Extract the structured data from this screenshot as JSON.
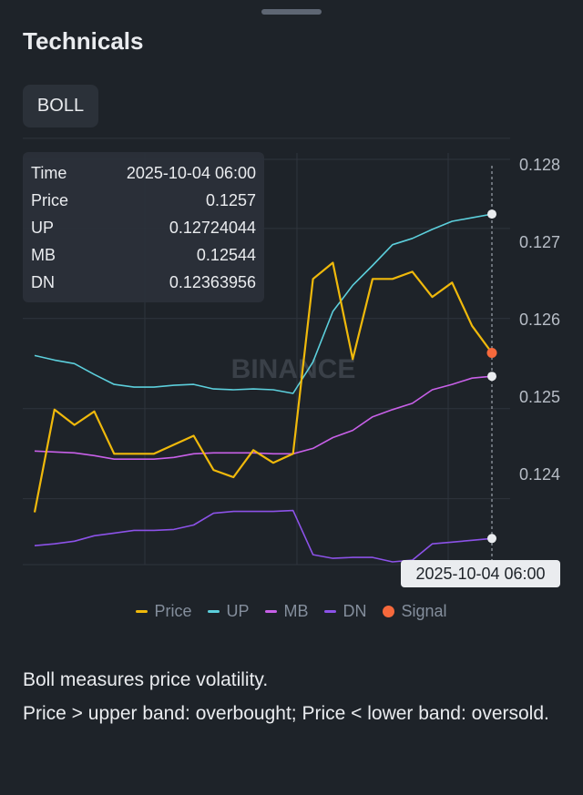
{
  "page": {
    "title": "Technicals",
    "indicator_tab": "BOLL"
  },
  "tooltip": {
    "rows": [
      {
        "label": "Time",
        "value": "2025-10-04 06:00"
      },
      {
        "label": "Price",
        "value": "0.1257"
      },
      {
        "label": "UP",
        "value": "0.12724044"
      },
      {
        "label": "MB",
        "value": "0.12544"
      },
      {
        "label": "DN",
        "value": "0.12363956"
      }
    ]
  },
  "crosshair_time_label": "2025-10-04 06:00",
  "watermark": "BINANCE",
  "description": {
    "line1": "Boll measures price volatility.",
    "line2": "Price > upper band: overbought; Price < lower band: oversold."
  },
  "colors": {
    "price": "#f0b90b",
    "up": "#5ccfdc",
    "mb": "#c860e8",
    "dn": "#8c52e8",
    "signal": "#f6693c",
    "grid": "#2f353d"
  },
  "chart_data": {
    "type": "line",
    "y_tick_labels": [
      "0.128",
      "0.127",
      "0.126",
      "0.125",
      "0.124"
    ],
    "y_ticks": [
      0.128,
      0.127,
      0.126,
      0.125,
      0.124
    ],
    "ylim": [
      0.12335,
      0.1281
    ],
    "grid": true,
    "legend_position": "bottom",
    "legend": [
      "Price",
      "UP",
      "MB",
      "DN",
      "Signal"
    ],
    "series": [
      {
        "name": "Price",
        "color": "#f0b90b",
        "values": [
          0.12393,
          0.12507,
          0.1249,
          0.12505,
          0.12458,
          0.12458,
          0.12458,
          0.12468,
          0.12478,
          0.1244,
          0.12432,
          0.12462,
          0.12448,
          0.12458,
          0.12652,
          0.1267,
          0.12563,
          0.12652,
          0.12652,
          0.1266,
          0.12632,
          0.12648,
          0.126,
          0.1257
        ]
      },
      {
        "name": "UP",
        "color": "#5ccfdc",
        "values": [
          0.12567,
          0.12562,
          0.12558,
          0.12546,
          0.12535,
          0.12532,
          0.12532,
          0.12534,
          0.12535,
          0.1253,
          0.12529,
          0.1253,
          0.12529,
          0.12525,
          0.1256,
          0.12616,
          0.12645,
          0.12667,
          0.1269,
          0.12697,
          0.12707,
          0.12716,
          0.1272,
          0.12724
        ]
      },
      {
        "name": "MB",
        "color": "#c860e8",
        "values": [
          0.12461,
          0.1246,
          0.12459,
          0.12456,
          0.12452,
          0.12452,
          0.12452,
          0.12454,
          0.12458,
          0.12459,
          0.12459,
          0.12459,
          0.12458,
          0.12458,
          0.12464,
          0.12476,
          0.12484,
          0.12499,
          0.12507,
          0.12514,
          0.12529,
          0.12535,
          0.12542,
          0.12544
        ]
      },
      {
        "name": "DN",
        "color": "#8c52e8",
        "values": [
          0.12356,
          0.12358,
          0.12361,
          0.12367,
          0.1237,
          0.12373,
          0.12373,
          0.12374,
          0.12379,
          0.12392,
          0.12394,
          0.12394,
          0.12394,
          0.12395,
          0.12346,
          0.12342,
          0.12343,
          0.12343,
          0.12338,
          0.1234,
          0.12358,
          0.1236,
          0.12362,
          0.12364
        ]
      }
    ],
    "signal": {
      "name": "Signal",
      "index": 23,
      "value": 0.1257,
      "color": "#f6693c"
    }
  }
}
